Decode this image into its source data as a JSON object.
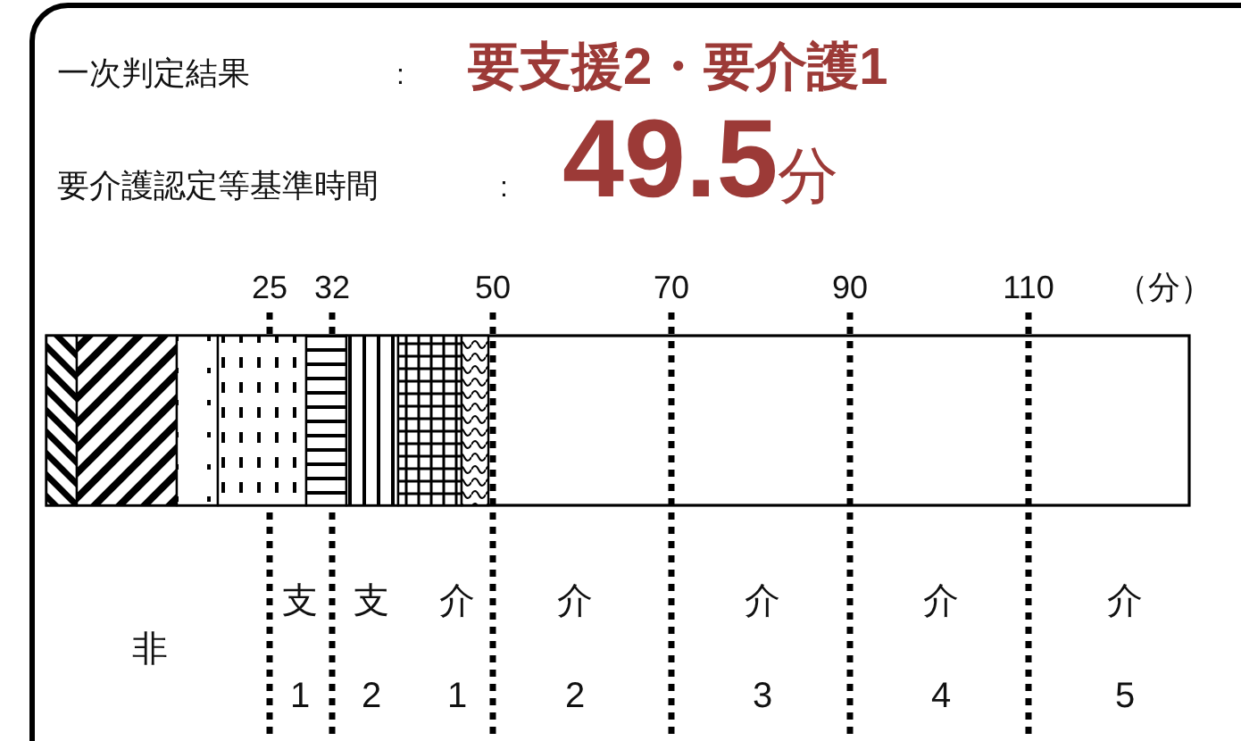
{
  "chart_data": {
    "type": "bar",
    "orientation": "horizontal",
    "stacked": true,
    "categories": [
      null
    ],
    "xlabel": "（分）",
    "xlim": [
      0,
      128
    ],
    "xticks": [
      25,
      32,
      50,
      70,
      90,
      110
    ],
    "tick_labels": "x",
    "series": [
      {
        "color": "#000000",
        "values": [
          3.4
        ]
      },
      {
        "color": "#000000",
        "values": [
          11.2
        ]
      },
      {
        "color": "#000000",
        "values": [
          4.6
        ]
      },
      {
        "color": "#000000",
        "values": [
          9.9
        ]
      },
      {
        "color": "#000000",
        "values": [
          4.5
        ]
      },
      {
        "color": "#000000",
        "values": [
          5.8
        ]
      },
      {
        "color": "#000000",
        "values": [
          7.1
        ]
      },
      {
        "color": "#000000",
        "values": [
          3.0
        ]
      }
    ],
    "ref_lines": [
      {
        "axis": "x",
        "value": 25,
        "color": "#000000",
        "line_style": "dotted"
      },
      {
        "axis": "x",
        "value": 32,
        "color": "#000000",
        "line_style": "dotted"
      },
      {
        "axis": "x",
        "value": 50,
        "color": "#000000",
        "line_style": "dotted"
      },
      {
        "axis": "x",
        "value": 70,
        "color": "#000000",
        "line_style": "dotted"
      },
      {
        "axis": "x",
        "value": 90,
        "color": "#000000",
        "line_style": "dotted"
      },
      {
        "axis": "x",
        "value": 110,
        "color": "#000000",
        "line_style": "dotted"
      }
    ],
    "annotations": [
      "一次判定結果",
      ":",
      "要支援2・要介護1",
      "要介護認定等基準時間",
      ":",
      "49.5分",
      "非",
      "支",
      "1",
      "支",
      "2",
      "介",
      "1",
      "介",
      "2",
      "介",
      "3",
      "介",
      "4",
      "介",
      "5"
    ]
  }
}
